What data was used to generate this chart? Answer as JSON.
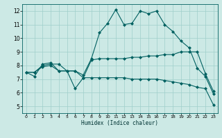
{
  "xlabel": "Humidex (Indice chaleur)",
  "x_ticks": [
    0,
    1,
    2,
    3,
    4,
    5,
    6,
    7,
    8,
    9,
    10,
    11,
    12,
    13,
    14,
    15,
    16,
    17,
    18,
    19,
    20,
    21,
    22,
    23
  ],
  "y_ticks": [
    5,
    6,
    7,
    8,
    9,
    10,
    11,
    12
  ],
  "xlim": [
    -0.5,
    23.5
  ],
  "ylim": [
    4.5,
    12.5
  ],
  "background_color": "#cce9e5",
  "grid_color": "#9fcfca",
  "line_color": "#006060",
  "curve1": [
    7.5,
    7.2,
    8.1,
    8.2,
    7.6,
    7.6,
    7.6,
    7.3,
    8.5,
    10.4,
    11.1,
    12.1,
    11.0,
    11.1,
    12.0,
    11.8,
    12.0,
    11.0,
    10.5,
    9.8,
    9.3,
    7.8,
    7.2,
    5.9
  ],
  "curve2": [
    7.5,
    7.5,
    8.0,
    8.1,
    8.1,
    7.6,
    7.6,
    7.1,
    8.4,
    8.5,
    8.5,
    8.5,
    8.5,
    8.6,
    8.6,
    8.7,
    8.7,
    8.8,
    8.8,
    9.0,
    9.0,
    9.0,
    7.4,
    6.1
  ],
  "curve3": [
    7.5,
    7.5,
    7.9,
    8.0,
    7.6,
    7.6,
    6.3,
    7.1,
    7.1,
    7.1,
    7.1,
    7.1,
    7.1,
    7.0,
    7.0,
    7.0,
    7.0,
    6.9,
    6.8,
    6.7,
    6.6,
    6.4,
    6.3,
    5.1
  ]
}
